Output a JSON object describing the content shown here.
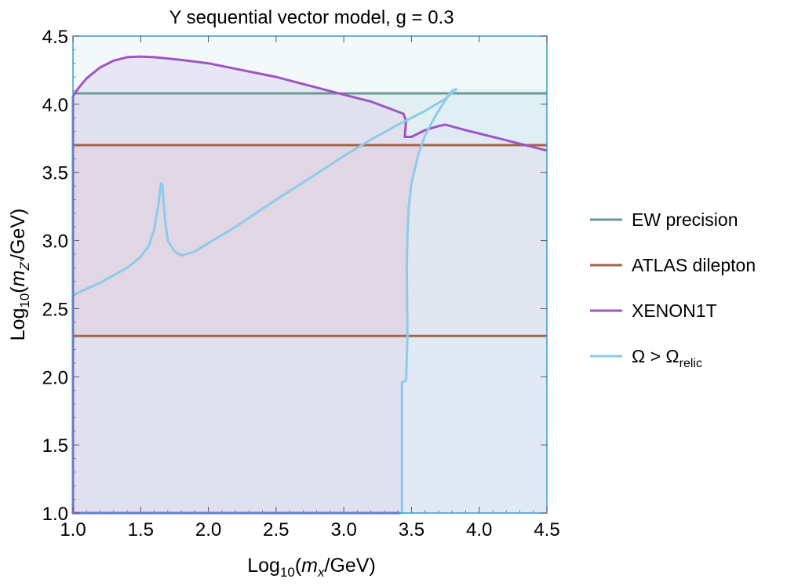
{
  "chart_data": {
    "type": "line",
    "title": "Y sequential vector model, g = 0.3",
    "xlabel": {
      "pre": "Log",
      "sub": "10",
      "open": "(",
      "var": "m",
      "varsub": "x",
      "post": "/GeV)"
    },
    "ylabel": {
      "pre": "Log",
      "sub": "10",
      "open": "(",
      "var": "m",
      "varsub": "Z'",
      "post": "/GeV)"
    },
    "xlim": [
      1.0,
      4.5
    ],
    "ylim": [
      1.0,
      4.5
    ],
    "xticks": [
      "1.0",
      "1.5",
      "2.0",
      "2.5",
      "3.0",
      "3.5",
      "4.0",
      "4.5"
    ],
    "yticks": [
      "1.0",
      "1.5",
      "2.0",
      "2.5",
      "3.0",
      "3.5",
      "4.0",
      "4.5"
    ],
    "grid": false,
    "legend_position": "right",
    "series": [
      {
        "name": "EW precision",
        "color": "#6a9a94",
        "fill": "#cfe3e3",
        "line": {
          "x": [
            1.0,
            4.5
          ],
          "y": [
            4.08,
            4.08
          ]
        },
        "excluded_region": "below"
      },
      {
        "name": "ATLAS dilepton",
        "color": "#a0654a",
        "fill": "#e8c9c4",
        "line": {
          "x": [
            1.0,
            4.5
          ],
          "y": [
            3.7,
            3.7
          ]
        },
        "line2": {
          "x": [
            1.0,
            4.5
          ],
          "y": [
            2.3,
            2.3
          ]
        },
        "excluded_region": "between"
      },
      {
        "name": "XENON1T",
        "color": "#9d55c4",
        "fill": "#ddd1ee",
        "line": {
          "x": [
            1.0,
            1.05,
            1.1,
            1.2,
            1.3,
            1.4,
            1.5,
            1.6,
            1.8,
            2.0,
            2.5,
            3.0,
            3.2,
            3.44,
            3.46,
            3.45,
            3.5,
            3.6,
            3.7,
            3.75,
            3.9,
            4.1,
            4.3,
            4.5
          ],
          "y": [
            4.06,
            4.13,
            4.19,
            4.27,
            4.32,
            4.345,
            4.35,
            4.345,
            4.325,
            4.3,
            4.2,
            4.07,
            4.02,
            3.93,
            3.88,
            3.76,
            3.76,
            3.81,
            3.84,
            3.85,
            3.81,
            3.76,
            3.71,
            3.66
          ]
        },
        "boundary": {
          "x": [
            1.0,
            1.0,
            3.42
          ],
          "y": [
            4.06,
            1.0,
            1.0
          ]
        },
        "excluded_region": "below"
      },
      {
        "name": "Ω > Ω",
        "name_sub": "relic",
        "color": "#8dcbea",
        "fill": "#dfeef7",
        "line": {
          "x": [
            1.0,
            1.2,
            1.4,
            1.5,
            1.56,
            1.6,
            1.63,
            1.65,
            1.66,
            1.68,
            1.7,
            1.75,
            1.8,
            1.9,
            2.0,
            2.2,
            2.5,
            2.8,
            3.0,
            3.2,
            3.4,
            3.6,
            3.75,
            3.83,
            3.8,
            3.75,
            3.68,
            3.6,
            3.55,
            3.5,
            3.48,
            3.47,
            3.465,
            3.47,
            3.46,
            3.43,
            3.43,
            3.41
          ],
          "y": [
            2.6,
            2.69,
            2.8,
            2.88,
            2.96,
            3.08,
            3.26,
            3.42,
            3.41,
            3.15,
            3.0,
            2.92,
            2.89,
            2.92,
            2.98,
            3.1,
            3.3,
            3.49,
            3.62,
            3.74,
            3.85,
            3.95,
            4.04,
            4.11,
            4.1,
            4.03,
            3.92,
            3.77,
            3.63,
            3.42,
            3.25,
            3.05,
            2.8,
            2.3,
            1.97,
            1.96,
            1.0,
            1.0
          ]
        },
        "excluded_region": "left"
      }
    ]
  }
}
